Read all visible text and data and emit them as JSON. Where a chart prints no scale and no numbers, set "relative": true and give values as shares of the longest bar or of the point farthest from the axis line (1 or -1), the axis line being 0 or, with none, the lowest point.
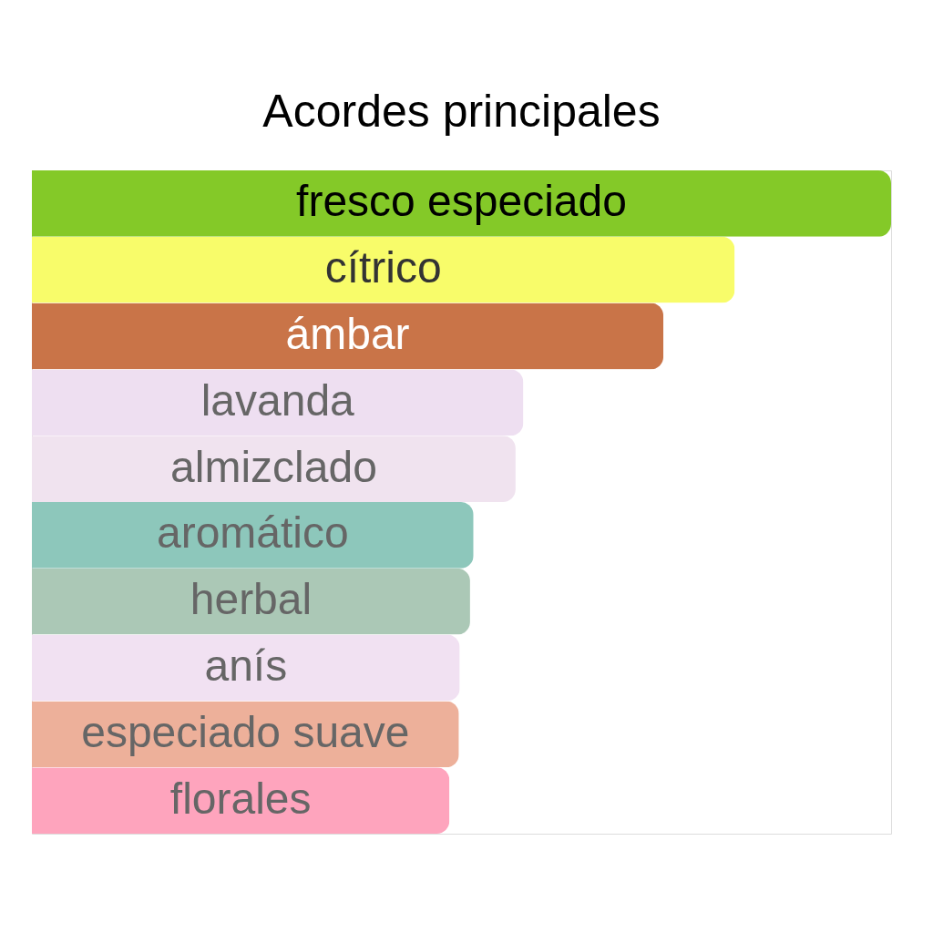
{
  "chart_data": {
    "type": "bar",
    "orientation": "horizontal",
    "relative": true,
    "title": "Acordes principales",
    "categories": [
      "fresco especiado",
      "cítrico",
      "ámbar",
      "lavanda",
      "almizclado",
      "aromático",
      "herbal",
      "anís",
      "especiado suave",
      "florales"
    ],
    "values": [
      1,
      0.818,
      0.735,
      0.572,
      0.563,
      0.514,
      0.51,
      0.498,
      0.497,
      0.486
    ],
    "colors": [
      "#84c928",
      "#f8fc6a",
      "#c97448",
      "#eedff1",
      "#f0e3ef",
      "#8dc7bb",
      "#abc8b6",
      "#f1e1f2",
      "#edb09a",
      "#fea4bd"
    ]
  }
}
